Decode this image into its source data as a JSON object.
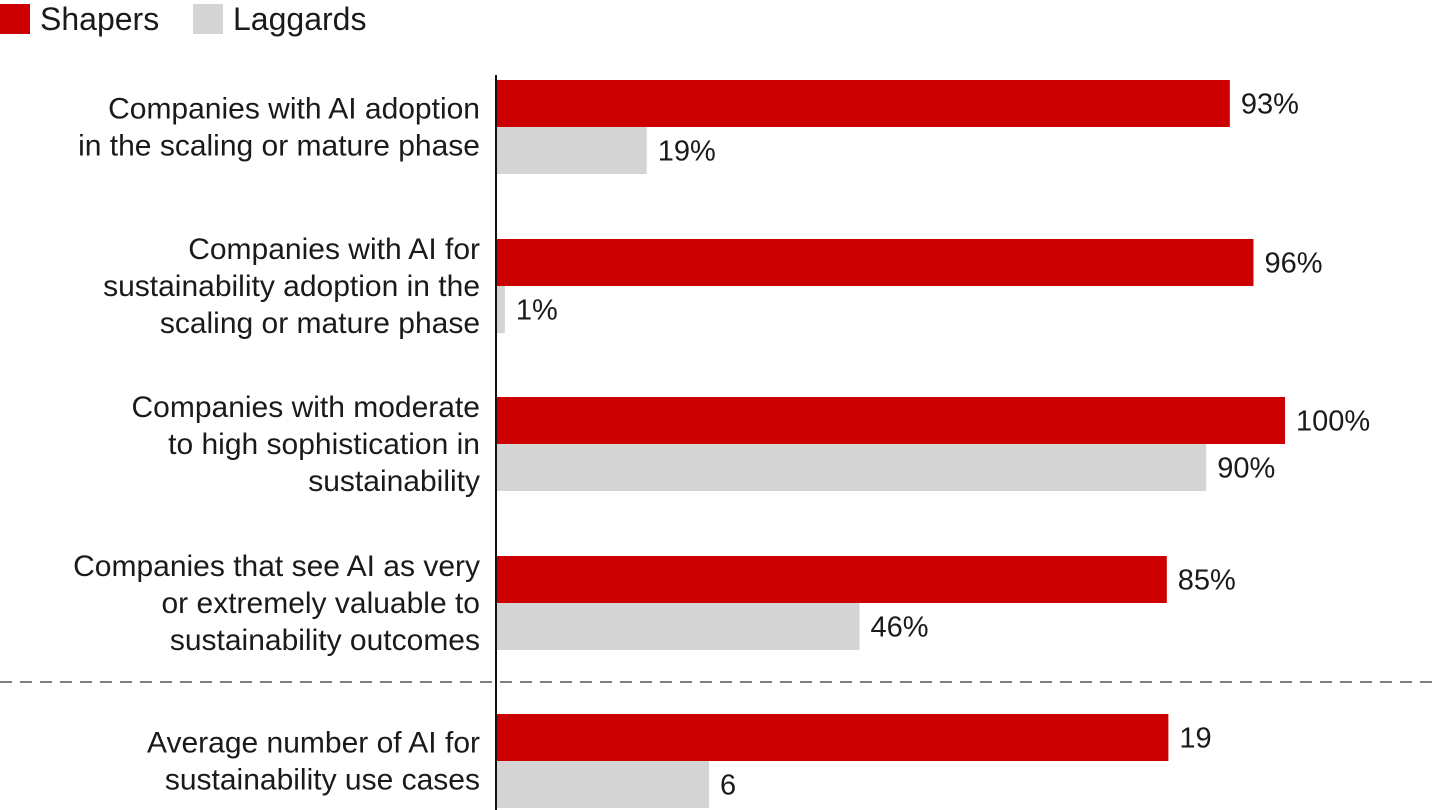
{
  "chart_data": {
    "type": "bar",
    "orientation": "horizontal",
    "legend": {
      "placement": "top-left",
      "items": [
        {
          "name": "Shapers",
          "color": "#cc0000"
        },
        {
          "name": "Laggards",
          "color": "#d4d4d4"
        }
      ]
    },
    "categories": [
      [
        "Companies with AI adoption",
        "in the scaling or mature phase"
      ],
      [
        "Companies with AI for",
        "sustainability adoption in the",
        "scaling or mature phase"
      ],
      [
        "Companies with moderate",
        "to high sophistication in",
        "sustainability"
      ],
      [
        "Companies that see AI as very",
        "or extremely valuable to",
        "sustainability outcomes"
      ],
      [
        "Average number of AI for",
        "sustainability use cases"
      ]
    ],
    "series": [
      {
        "name": "Shapers",
        "color": "#cc0000",
        "values": [
          93,
          96,
          100,
          85,
          19
        ],
        "labels": [
          "93%",
          "96%",
          "100%",
          "85%",
          "19"
        ]
      },
      {
        "name": "Laggards",
        "color": "#d4d4d4",
        "values": [
          19,
          1,
          90,
          46,
          6
        ],
        "labels": [
          "19%",
          "1%",
          "90%",
          "46%",
          "6"
        ]
      }
    ],
    "units": [
      "percent",
      "percent",
      "percent",
      "percent",
      "count"
    ],
    "count_scale_max": 22.3,
    "xlim": [
      0,
      100
    ],
    "separator": {
      "style": "dashed",
      "after_category_index": 3
    },
    "grid": false,
    "title": "",
    "xlabel": "",
    "ylabel": ""
  }
}
